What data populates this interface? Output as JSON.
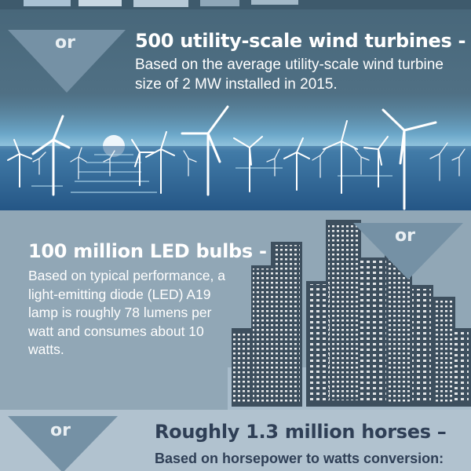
{
  "wind": {
    "or_label": "or",
    "title": "500 utility-scale wind turbines -",
    "body": "Based on the average utility-scale wind turbine size of 2 MW installed in 2015."
  },
  "led": {
    "or_label": "or",
    "title": "100 million LED bulbs -",
    "body": "Based on typical performance, a light-emitting diode (LED) A19 lamp is roughly 78 lumens per watt and consumes about 10 watts."
  },
  "horses": {
    "or_label": "or",
    "title": "Roughly 1.3 million horses –",
    "body": "Based on horsepower to watts conversion:"
  },
  "colors": {
    "wind_bg": "#4f6f83",
    "led_bg": "#91a7b6",
    "horse_bg": "#b1c2cf",
    "arrow": "#7591a5",
    "horse_text": "#2f3f56"
  }
}
